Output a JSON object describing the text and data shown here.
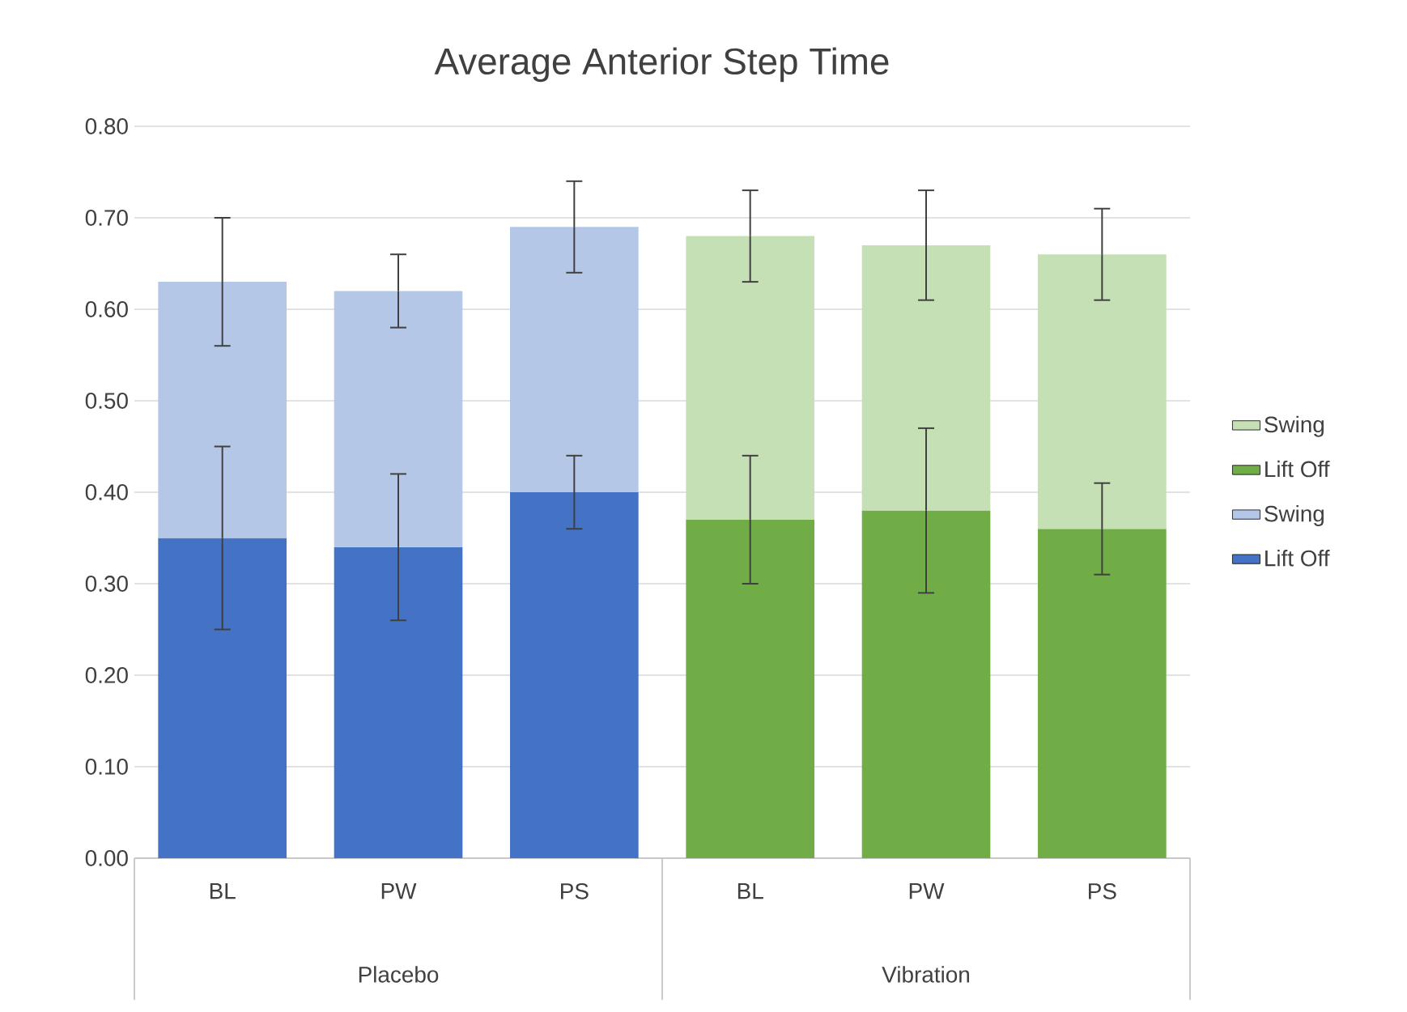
{
  "chart_data": {
    "type": "bar",
    "title": "Average Anterior Step Time",
    "stacked": true,
    "categories": [
      "BL",
      "PW",
      "PS",
      "BL",
      "PW",
      "PS"
    ],
    "series": [
      {
        "name": "Lift Off",
        "color": "#4472c4",
        "values": [
          0.35,
          0.34,
          0.4,
          null,
          null,
          null
        ],
        "errors": [
          0.1,
          0.08,
          0.04,
          null,
          null,
          null
        ]
      },
      {
        "name": "Swing",
        "color": "#b4c7e7",
        "values": [
          0.28,
          0.28,
          0.29,
          null,
          null,
          null
        ],
        "errors": [
          0.07,
          0.04,
          0.05,
          null,
          null,
          null
        ]
      },
      {
        "name": "Lift Off",
        "color": "#70ad47",
        "values": [
          null,
          null,
          null,
          0.37,
          0.38,
          0.36
        ],
        "errors": [
          null,
          null,
          null,
          0.07,
          0.09,
          0.05
        ]
      },
      {
        "name": "Swing",
        "color": "#c5e0b4",
        "values": [
          null,
          null,
          null,
          0.31,
          0.29,
          0.3
        ],
        "errors": [
          null,
          null,
          null,
          0.05,
          0.06,
          0.05
        ]
      }
    ],
    "ylim": [
      0,
      0.8
    ],
    "yticks": [
      {
        "value": 0,
        "label": "0.00"
      },
      {
        "value": 0.1,
        "label": "0.10"
      },
      {
        "value": 0.2,
        "label": "0.20"
      },
      {
        "value": 0.3,
        "label": "0.30"
      },
      {
        "value": 0.4,
        "label": "0.40"
      },
      {
        "value": 0.5,
        "label": "0.50"
      },
      {
        "value": 0.6,
        "label": "0.60"
      },
      {
        "value": 0.7,
        "label": "0.70"
      },
      {
        "value": 0.8,
        "label": "0.80"
      }
    ],
    "grid": "y",
    "legend": "right",
    "annotations": [
      "Placebo",
      "Vibration"
    ]
  }
}
